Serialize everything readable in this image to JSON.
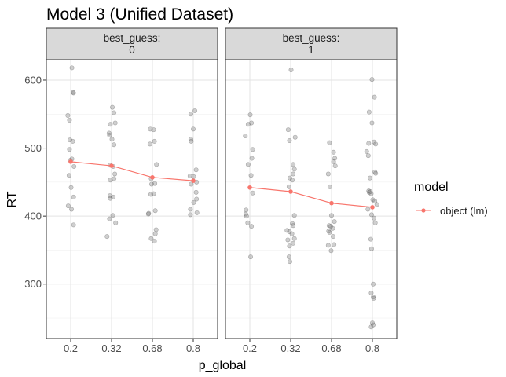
{
  "chart_data": {
    "type": "scatter",
    "title": "Model 3 (Unified Dataset)",
    "xlabel": "p_global",
    "ylabel": "RT",
    "categories": [
      "0.2",
      "0.32",
      "0.68",
      "0.8"
    ],
    "ylim": [
      220,
      630
    ],
    "yticks": [
      300,
      400,
      500,
      600
    ],
    "grid": true,
    "legend_position": "right",
    "legend": {
      "title": "model",
      "entries": [
        {
          "label": "object (lm)",
          "color": "#F8766D"
        }
      ]
    },
    "colors": {
      "points": "#808080",
      "line": "#F8766D",
      "strip": "#D9D9D9"
    },
    "panels": [
      {
        "strip": [
          "best_guess:",
          "0"
        ],
        "line": {
          "name": "object (lm)",
          "values": [
            480,
            474,
            457,
            452
          ]
        },
        "points": [
          [
            [
              0.93,
              548
            ],
            [
              0.97,
              541
            ],
            [
              1.03,
              618
            ],
            [
              1.06,
              582
            ],
            [
              1.07,
              581
            ],
            [
              0.98,
              512
            ],
            [
              1.05,
              510
            ],
            [
              1.08,
              473
            ],
            [
              0.97,
              498
            ],
            [
              0.99,
              482
            ],
            [
              1.03,
              484
            ],
            [
              0.96,
              460
            ],
            [
              1.01,
              442
            ],
            [
              1.07,
              428
            ],
            [
              1.02,
              410
            ],
            [
              0.94,
              415
            ],
            [
              1.07,
              387
            ]
          ],
          [
            [
              2.02,
              560
            ],
            [
              2.06,
              552
            ],
            [
              2.09,
              537
            ],
            [
              1.97,
              535
            ],
            [
              1.94,
              522
            ],
            [
              1.95,
              519
            ],
            [
              2.01,
              513
            ],
            [
              2.06,
              505
            ],
            [
              1.96,
              475
            ],
            [
              2.04,
              473
            ],
            [
              2.08,
              462
            ],
            [
              2.06,
              455
            ],
            [
              1.97,
              453
            ],
            [
              1.96,
              430
            ],
            [
              1.97,
              426
            ],
            [
              2.04,
              428
            ],
            [
              2.03,
              401
            ],
            [
              1.95,
              396
            ],
            [
              2.1,
              390
            ],
            [
              1.89,
              370
            ]
          ],
          [
            [
              2.95,
              528
            ],
            [
              3.03,
              527
            ],
            [
              3.05,
              510
            ],
            [
              2.94,
              506
            ],
            [
              3.1,
              476
            ],
            [
              2.97,
              455
            ],
            [
              3.06,
              448
            ],
            [
              2.98,
              447
            ],
            [
              3.03,
              433
            ],
            [
              2.96,
              432
            ],
            [
              2.91,
              404
            ],
            [
              2.9,
              403
            ],
            [
              3.07,
              408
            ],
            [
              3.09,
              380
            ],
            [
              3.07,
              374
            ],
            [
              2.97,
              367
            ],
            [
              3.05,
              363
            ]
          ],
          [
            [
              3.94,
              550
            ],
            [
              4.04,
              555
            ],
            [
              3.94,
              513
            ],
            [
              3.95,
              510
            ],
            [
              4.07,
              468
            ],
            [
              4.01,
              458
            ],
            [
              3.95,
              447
            ],
            [
              3.92,
              459
            ],
            [
              4.08,
              450
            ],
            [
              4.07,
              435
            ],
            [
              4.08,
              425
            ],
            [
              4.01,
              420
            ],
            [
              3.93,
              410
            ],
            [
              3.93,
              402
            ],
            [
              4.09,
              405
            ],
            [
              4.0,
              528
            ]
          ]
        ]
      },
      {
        "strip": [
          "best_guess:",
          "1"
        ],
        "line": {
          "name": "object (lm)",
          "values": [
            442,
            436,
            419,
            413
          ]
        },
        "points": [
          [
            [
              0.96,
              535
            ],
            [
              1.01,
              549
            ],
            [
              1.04,
              537
            ],
            [
              0.89,
              518
            ],
            [
              1.07,
              498
            ],
            [
              1.05,
              485
            ],
            [
              0.96,
              476
            ],
            [
              1.03,
              460
            ],
            [
              1.07,
              434
            ],
            [
              0.91,
              409
            ],
            [
              0.9,
              403
            ],
            [
              0.92,
              400
            ],
            [
              0.95,
              390
            ],
            [
              1.04,
              385
            ],
            [
              1.02,
              340
            ]
          ],
          [
            [
              2.01,
              615
            ],
            [
              1.94,
              527
            ],
            [
              2.11,
              516
            ],
            [
              1.97,
              511
            ],
            [
              2.06,
              476
            ],
            [
              2.09,
              469
            ],
            [
              2.06,
              462
            ],
            [
              1.98,
              456
            ],
            [
              2.04,
              453
            ],
            [
              1.96,
              443
            ],
            [
              2.09,
              401
            ],
            [
              2.04,
              389
            ],
            [
              2.06,
              386
            ],
            [
              1.91,
              379
            ],
            [
              1.97,
              377
            ],
            [
              2.03,
              374
            ],
            [
              1.93,
              365
            ],
            [
              2.06,
              360
            ],
            [
              1.97,
              356
            ],
            [
              1.96,
              340
            ],
            [
              1.98,
              333
            ],
            [
              2.09,
              367
            ]
          ],
          [
            [
              2.95,
              508
            ],
            [
              3.05,
              494
            ],
            [
              3.08,
              485
            ],
            [
              3.05,
              480
            ],
            [
              3.09,
              474
            ],
            [
              2.92,
              462
            ],
            [
              2.96,
              443
            ],
            [
              3.0,
              401
            ],
            [
              3.07,
              392
            ],
            [
              2.98,
              385
            ],
            [
              2.94,
              386
            ],
            [
              3.03,
              382
            ],
            [
              2.93,
              378
            ],
            [
              2.95,
              376
            ],
            [
              3.04,
              370
            ],
            [
              3.06,
              358
            ],
            [
              2.92,
              357
            ],
            [
              2.99,
              349
            ]
          ],
          [
            [
              3.99,
              601
            ],
            [
              4.05,
              575
            ],
            [
              3.92,
              553
            ],
            [
              3.99,
              537
            ],
            [
              4.04,
              509
            ],
            [
              3.91,
              507
            ],
            [
              4.08,
              506
            ],
            [
              3.86,
              495
            ],
            [
              3.9,
              489
            ],
            [
              4.06,
              465
            ],
            [
              4.08,
              463
            ],
            [
              3.94,
              456
            ],
            [
              3.91,
              437
            ],
            [
              3.92,
              435
            ],
            [
              3.95,
              436
            ],
            [
              3.97,
              433
            ],
            [
              4.01,
              424
            ],
            [
              3.89,
              410
            ],
            [
              4.06,
              422
            ],
            [
              4.11,
              417
            ],
            [
              3.98,
              402
            ],
            [
              4.04,
              397
            ],
            [
              4.07,
              390
            ],
            [
              3.96,
              366
            ],
            [
              3.98,
              352
            ],
            [
              4.02,
              300
            ],
            [
              3.97,
              287
            ],
            [
              4.02,
              281
            ],
            [
              4.03,
              279
            ],
            [
              4.0,
              243
            ],
            [
              4.02,
              240
            ],
            [
              3.97,
              237
            ]
          ]
        ]
      }
    ]
  }
}
